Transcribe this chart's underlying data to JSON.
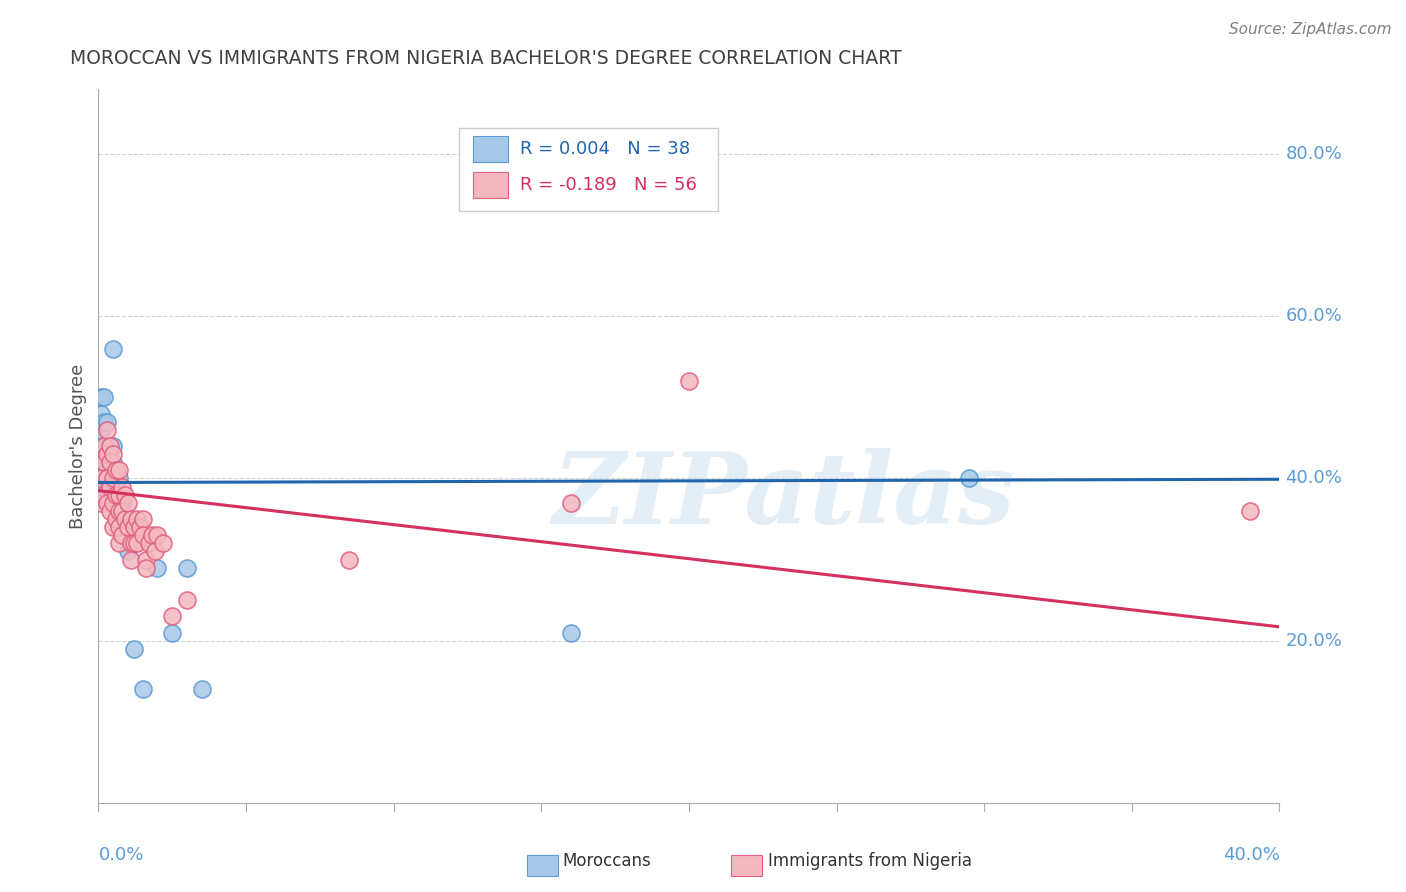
{
  "title": "MOROCCAN VS IMMIGRANTS FROM NIGERIA BACHELOR'S DEGREE CORRELATION CHART",
  "source": "Source: ZipAtlas.com",
  "ylabel": "Bachelor's Degree",
  "watermark": "ZIPatlas",
  "blue_R": 0.004,
  "blue_N": 38,
  "pink_R": -0.189,
  "pink_N": 56,
  "ylim": [
    0.0,
    0.88
  ],
  "xlim": [
    0.0,
    0.4
  ],
  "yticks": [
    0.2,
    0.4,
    0.6,
    0.8
  ],
  "ytick_labels": [
    "20.0%",
    "40.0%",
    "60.0%",
    "80.0%"
  ],
  "blue_color": "#a8c8e8",
  "pink_color": "#f4b8c0",
  "blue_edge_color": "#5b9bd5",
  "pink_edge_color": "#e06080",
  "blue_line_color": "#2166ac",
  "pink_line_color": "#d43060",
  "blue_dashed_color": "#7fbfdf",
  "axis_color": "#5b9bd5",
  "grid_color": "#c8c8c8",
  "title_color": "#404040",
  "source_color": "#808080",
  "blue_line_intercept": 0.395,
  "blue_line_slope": 0.01,
  "pink_line_intercept": 0.385,
  "pink_line_slope": -0.42,
  "blue_scatter_x": [
    0.001,
    0.001,
    0.001,
    0.001,
    0.001,
    0.002,
    0.002,
    0.002,
    0.002,
    0.002,
    0.003,
    0.003,
    0.003,
    0.003,
    0.004,
    0.004,
    0.004,
    0.004,
    0.005,
    0.005,
    0.005,
    0.005,
    0.005,
    0.006,
    0.006,
    0.007,
    0.007,
    0.008,
    0.009,
    0.01,
    0.012,
    0.015,
    0.02,
    0.025,
    0.03,
    0.035,
    0.16,
    0.295
  ],
  "blue_scatter_y": [
    0.42,
    0.44,
    0.46,
    0.48,
    0.5,
    0.39,
    0.41,
    0.43,
    0.47,
    0.5,
    0.38,
    0.41,
    0.44,
    0.47,
    0.39,
    0.42,
    0.44,
    0.39,
    0.37,
    0.4,
    0.42,
    0.44,
    0.56,
    0.38,
    0.41,
    0.37,
    0.4,
    0.37,
    0.33,
    0.31,
    0.19,
    0.14,
    0.29,
    0.21,
    0.29,
    0.14,
    0.21,
    0.4
  ],
  "pink_scatter_x": [
    0.001,
    0.001,
    0.001,
    0.002,
    0.002,
    0.002,
    0.003,
    0.003,
    0.003,
    0.003,
    0.004,
    0.004,
    0.004,
    0.004,
    0.005,
    0.005,
    0.005,
    0.005,
    0.006,
    0.006,
    0.006,
    0.007,
    0.007,
    0.007,
    0.007,
    0.007,
    0.008,
    0.008,
    0.008,
    0.009,
    0.009,
    0.01,
    0.01,
    0.011,
    0.011,
    0.011,
    0.012,
    0.012,
    0.013,
    0.013,
    0.014,
    0.015,
    0.015,
    0.016,
    0.016,
    0.017,
    0.018,
    0.019,
    0.02,
    0.022,
    0.025,
    0.03,
    0.16,
    0.2,
    0.39,
    0.085
  ],
  "pink_scatter_y": [
    0.43,
    0.4,
    0.37,
    0.44,
    0.42,
    0.38,
    0.46,
    0.43,
    0.4,
    0.37,
    0.44,
    0.42,
    0.39,
    0.36,
    0.43,
    0.4,
    0.37,
    0.34,
    0.41,
    0.38,
    0.35,
    0.41,
    0.38,
    0.36,
    0.34,
    0.32,
    0.39,
    0.36,
    0.33,
    0.38,
    0.35,
    0.37,
    0.34,
    0.35,
    0.32,
    0.3,
    0.34,
    0.32,
    0.35,
    0.32,
    0.34,
    0.35,
    0.33,
    0.3,
    0.29,
    0.32,
    0.33,
    0.31,
    0.33,
    0.32,
    0.23,
    0.25,
    0.37,
    0.52,
    0.36,
    0.3
  ]
}
